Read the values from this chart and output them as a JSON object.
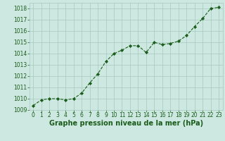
{
  "x": [
    0,
    1,
    2,
    3,
    4,
    5,
    6,
    7,
    8,
    9,
    10,
    11,
    12,
    13,
    14,
    15,
    16,
    17,
    18,
    19,
    20,
    21,
    22,
    23
  ],
  "y": [
    1009.4,
    1009.9,
    1010.0,
    1010.0,
    1009.9,
    1010.0,
    1010.5,
    1011.4,
    1012.2,
    1013.3,
    1014.0,
    1014.3,
    1014.7,
    1014.7,
    1014.1,
    1015.0,
    1014.8,
    1014.9,
    1015.1,
    1015.6,
    1016.4,
    1017.1,
    1018.0,
    1018.1
  ],
  "line_color": "#1a5c1a",
  "marker_color": "#1a5c1a",
  "bg_color": "#cce8e0",
  "grid_color": "#a8c8c0",
  "title": "Graphe pression niveau de la mer (hPa)",
  "xlim": [
    -0.5,
    23.5
  ],
  "ylim": [
    1009.0,
    1018.5
  ],
  "yticks": [
    1009,
    1010,
    1011,
    1012,
    1013,
    1014,
    1015,
    1016,
    1017,
    1018
  ],
  "xticks": [
    0,
    1,
    2,
    3,
    4,
    5,
    6,
    7,
    8,
    9,
    10,
    11,
    12,
    13,
    14,
    15,
    16,
    17,
    18,
    19,
    20,
    21,
    22,
    23
  ],
  "title_fontsize": 7.0,
  "tick_fontsize": 5.5,
  "title_color": "#1a5c1a",
  "tick_color": "#1a5c1a"
}
